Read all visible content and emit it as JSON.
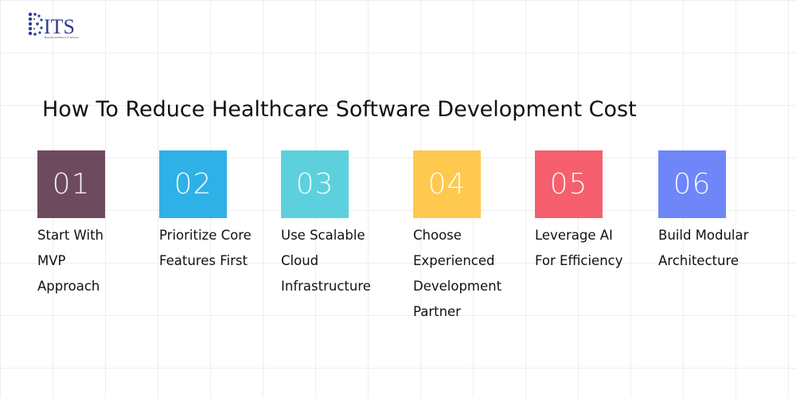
{
  "brand": {
    "logo_text": "ITS",
    "logo_letter": "B",
    "tagline": "Bespoke Software & IT Services",
    "logo_color": "#2c3e91"
  },
  "title": "How To Reduce Healthcare Software Development Cost",
  "steps": [
    {
      "number": "01",
      "color": "#6e4a5e",
      "lines": [
        "Start With",
        "MVP",
        "Approach"
      ]
    },
    {
      "number": "02",
      "color": "#2eb1e6",
      "lines": [
        "Prioritize Core",
        "Features First"
      ]
    },
    {
      "number": "03",
      "color": "#5cd1dd",
      "lines": [
        "Use Scalable",
        "Cloud",
        "Infrastructure"
      ]
    },
    {
      "number": "04",
      "color": "#ffc94f",
      "lines": [
        "Choose",
        "Experienced",
        "Development",
        "Partner"
      ]
    },
    {
      "number": "05",
      "color": "#f55f6e",
      "lines": [
        "Leverage AI",
        "For Efficiency"
      ]
    },
    {
      "number": "06",
      "color": "#6f86f9",
      "lines": [
        "Build Modular",
        "Architecture"
      ]
    }
  ]
}
